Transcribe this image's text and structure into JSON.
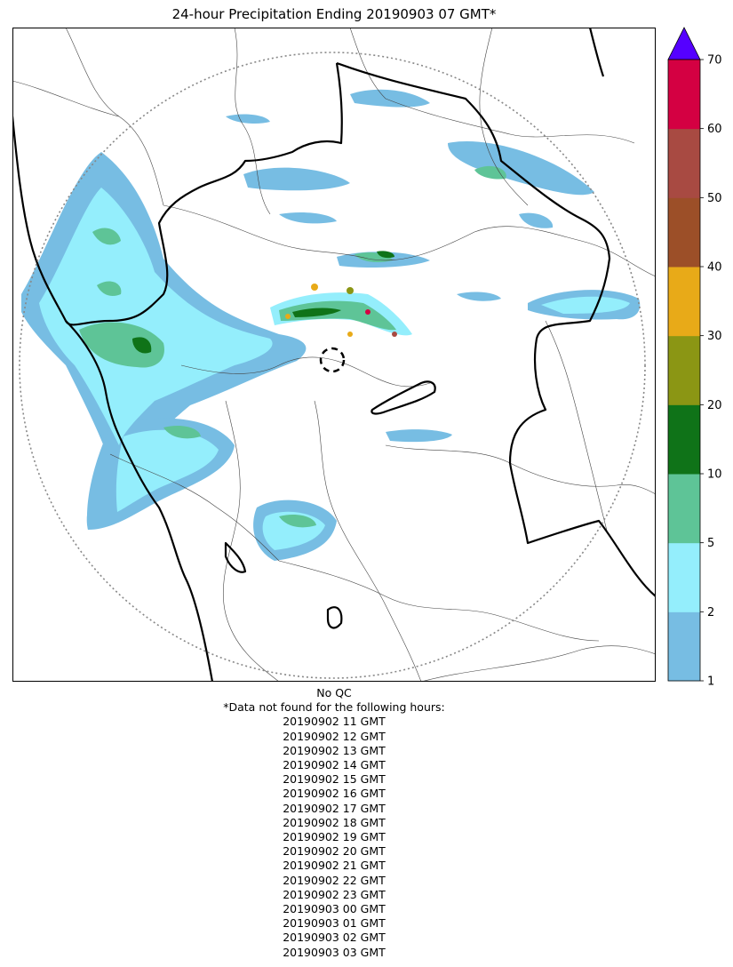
{
  "title": "24-hour Precipitation Ending 20190903 07 GMT*",
  "notes": {
    "qc": "No QC",
    "missing_header": "*Data not found for the following hours:",
    "missing_hours": [
      "20190902 11 GMT",
      "20190902 12 GMT",
      "20190902 13 GMT",
      "20190902 14 GMT",
      "20190902 15 GMT",
      "20190902 16 GMT",
      "20190902 17 GMT",
      "20190902 18 GMT",
      "20190902 19 GMT",
      "20190902 20 GMT",
      "20190902 21 GMT",
      "20190902 22 GMT",
      "20190902 23 GMT",
      "20190903 00 GMT",
      "20190903 01 GMT",
      "20190903 02 GMT",
      "20190903 03 GMT"
    ]
  },
  "colorbar": {
    "levels": [
      "1",
      "2",
      "5",
      "10",
      "20",
      "30",
      "40",
      "50",
      "60",
      "70"
    ],
    "colors": [
      "#77bde3",
      "#94eefc",
      "#5ec497",
      "#0f7318",
      "#8b9614",
      "#e8aa18",
      "#9c4f28",
      "#a84a42",
      "#d40042"
    ],
    "extend_color": "#5500ff"
  },
  "legend_colors": {
    "coast_border": "#000000",
    "district_lines": "#444444",
    "range_ring": "#888888"
  }
}
